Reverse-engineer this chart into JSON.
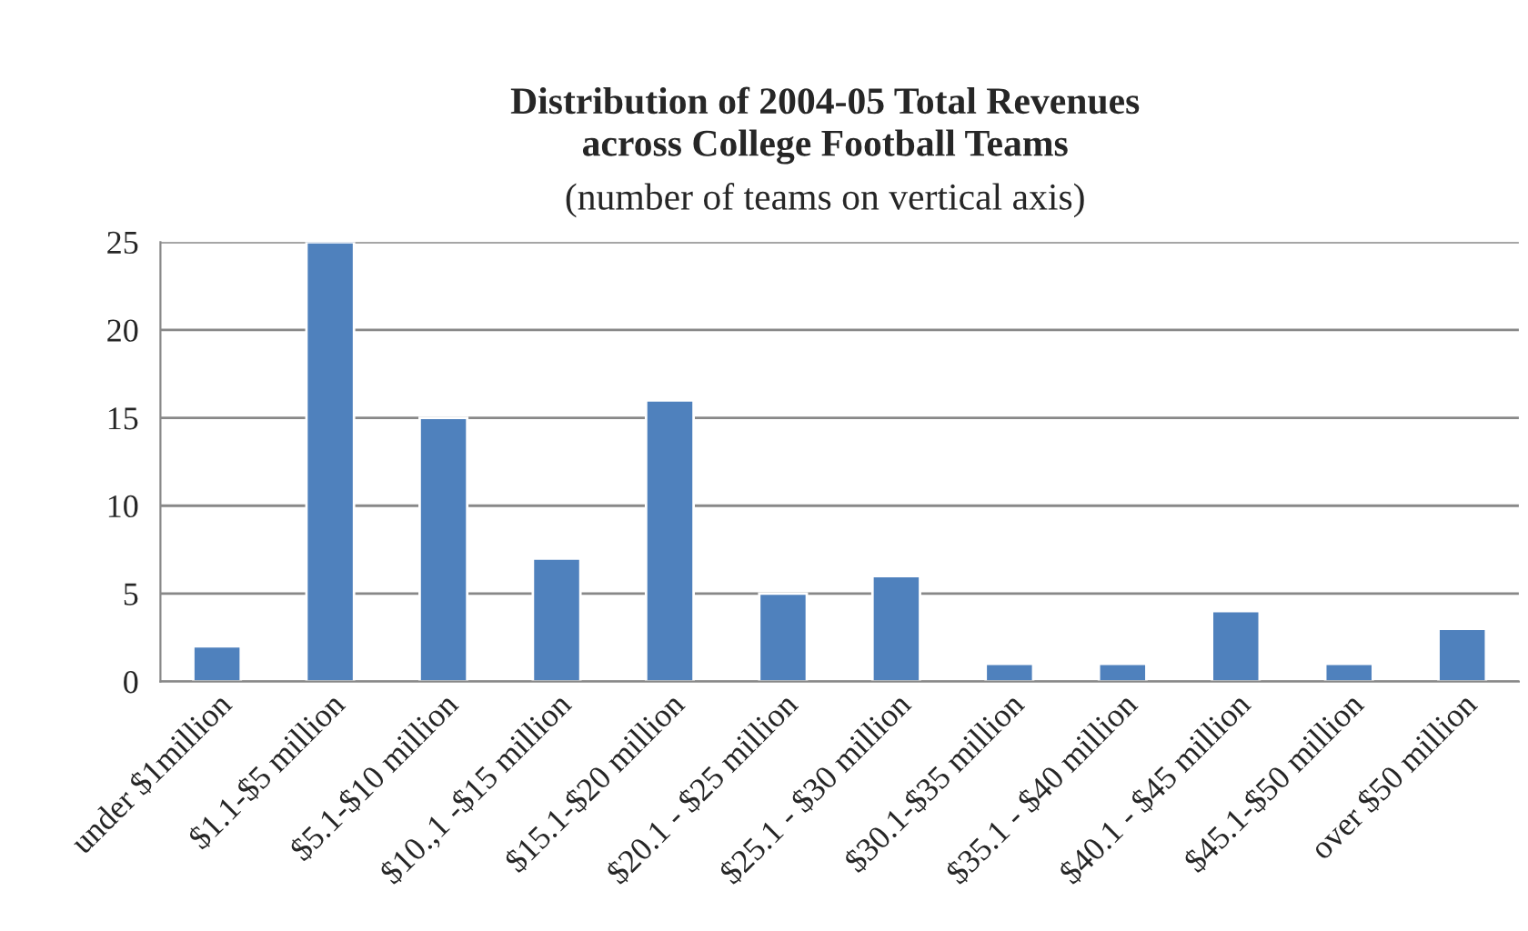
{
  "chart_data": {
    "type": "bar",
    "title": "Distribution of 2004-05 Total Revenues\nacross College Football Teams",
    "subtitle": "(number of teams on vertical axis)",
    "categories": [
      "under $1million",
      "$1.1-$5 million",
      "$5.1-$10 million",
      "$10.,1 -$15 million",
      "$15.1-$20 million",
      "$20.1 - $25 million",
      "$25.1 - $30 million",
      "$30.1-$35 million",
      "$35.1 - $40 million",
      "$40.1 - $45 million",
      "$45.1-$50 million",
      "over $50 million"
    ],
    "values": [
      2,
      25,
      15,
      7,
      16,
      5,
      6,
      1,
      1,
      4,
      1,
      3
    ],
    "color": "#4f81bd",
    "ylim": [
      0,
      25
    ],
    "yticks": [
      0,
      5,
      10,
      15,
      20,
      25
    ],
    "grid": "y"
  }
}
